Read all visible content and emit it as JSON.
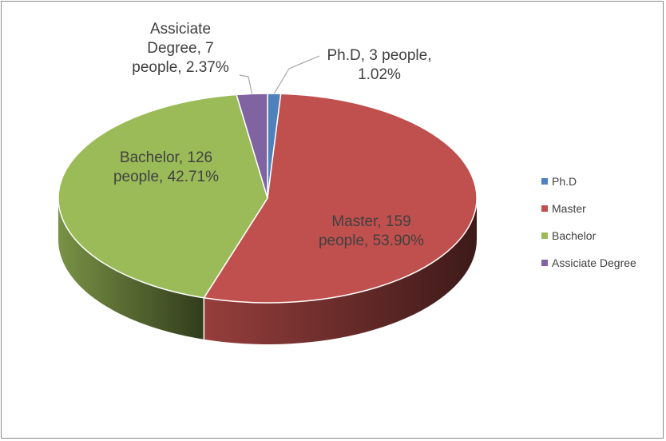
{
  "chart_data": {
    "type": "pie",
    "title": "",
    "categories": [
      "Ph.D",
      "Master",
      "Bachelor",
      "Assiciate Degree"
    ],
    "values": [
      3,
      159,
      126,
      7
    ],
    "percentages": [
      "1.02%",
      "53.90%",
      "42.71%",
      "2.37%"
    ],
    "colors": [
      "#4f81bd",
      "#c0504d",
      "#9bbb59",
      "#8064a2"
    ],
    "data_labels": [
      [
        "Ph.D, 3 people,",
        "1.02%"
      ],
      [
        "Master, 159",
        "people, 53.90%"
      ],
      [
        "Bachelor, 126",
        "people, 42.71%"
      ],
      [
        "Assiciate",
        "Degree, 7",
        "people, 2.37%"
      ]
    ],
    "legend": {
      "position": "right",
      "entries": [
        "Ph.D",
        "Master",
        "Bachelor",
        "Assiciate Degree"
      ]
    },
    "style": "3d"
  }
}
